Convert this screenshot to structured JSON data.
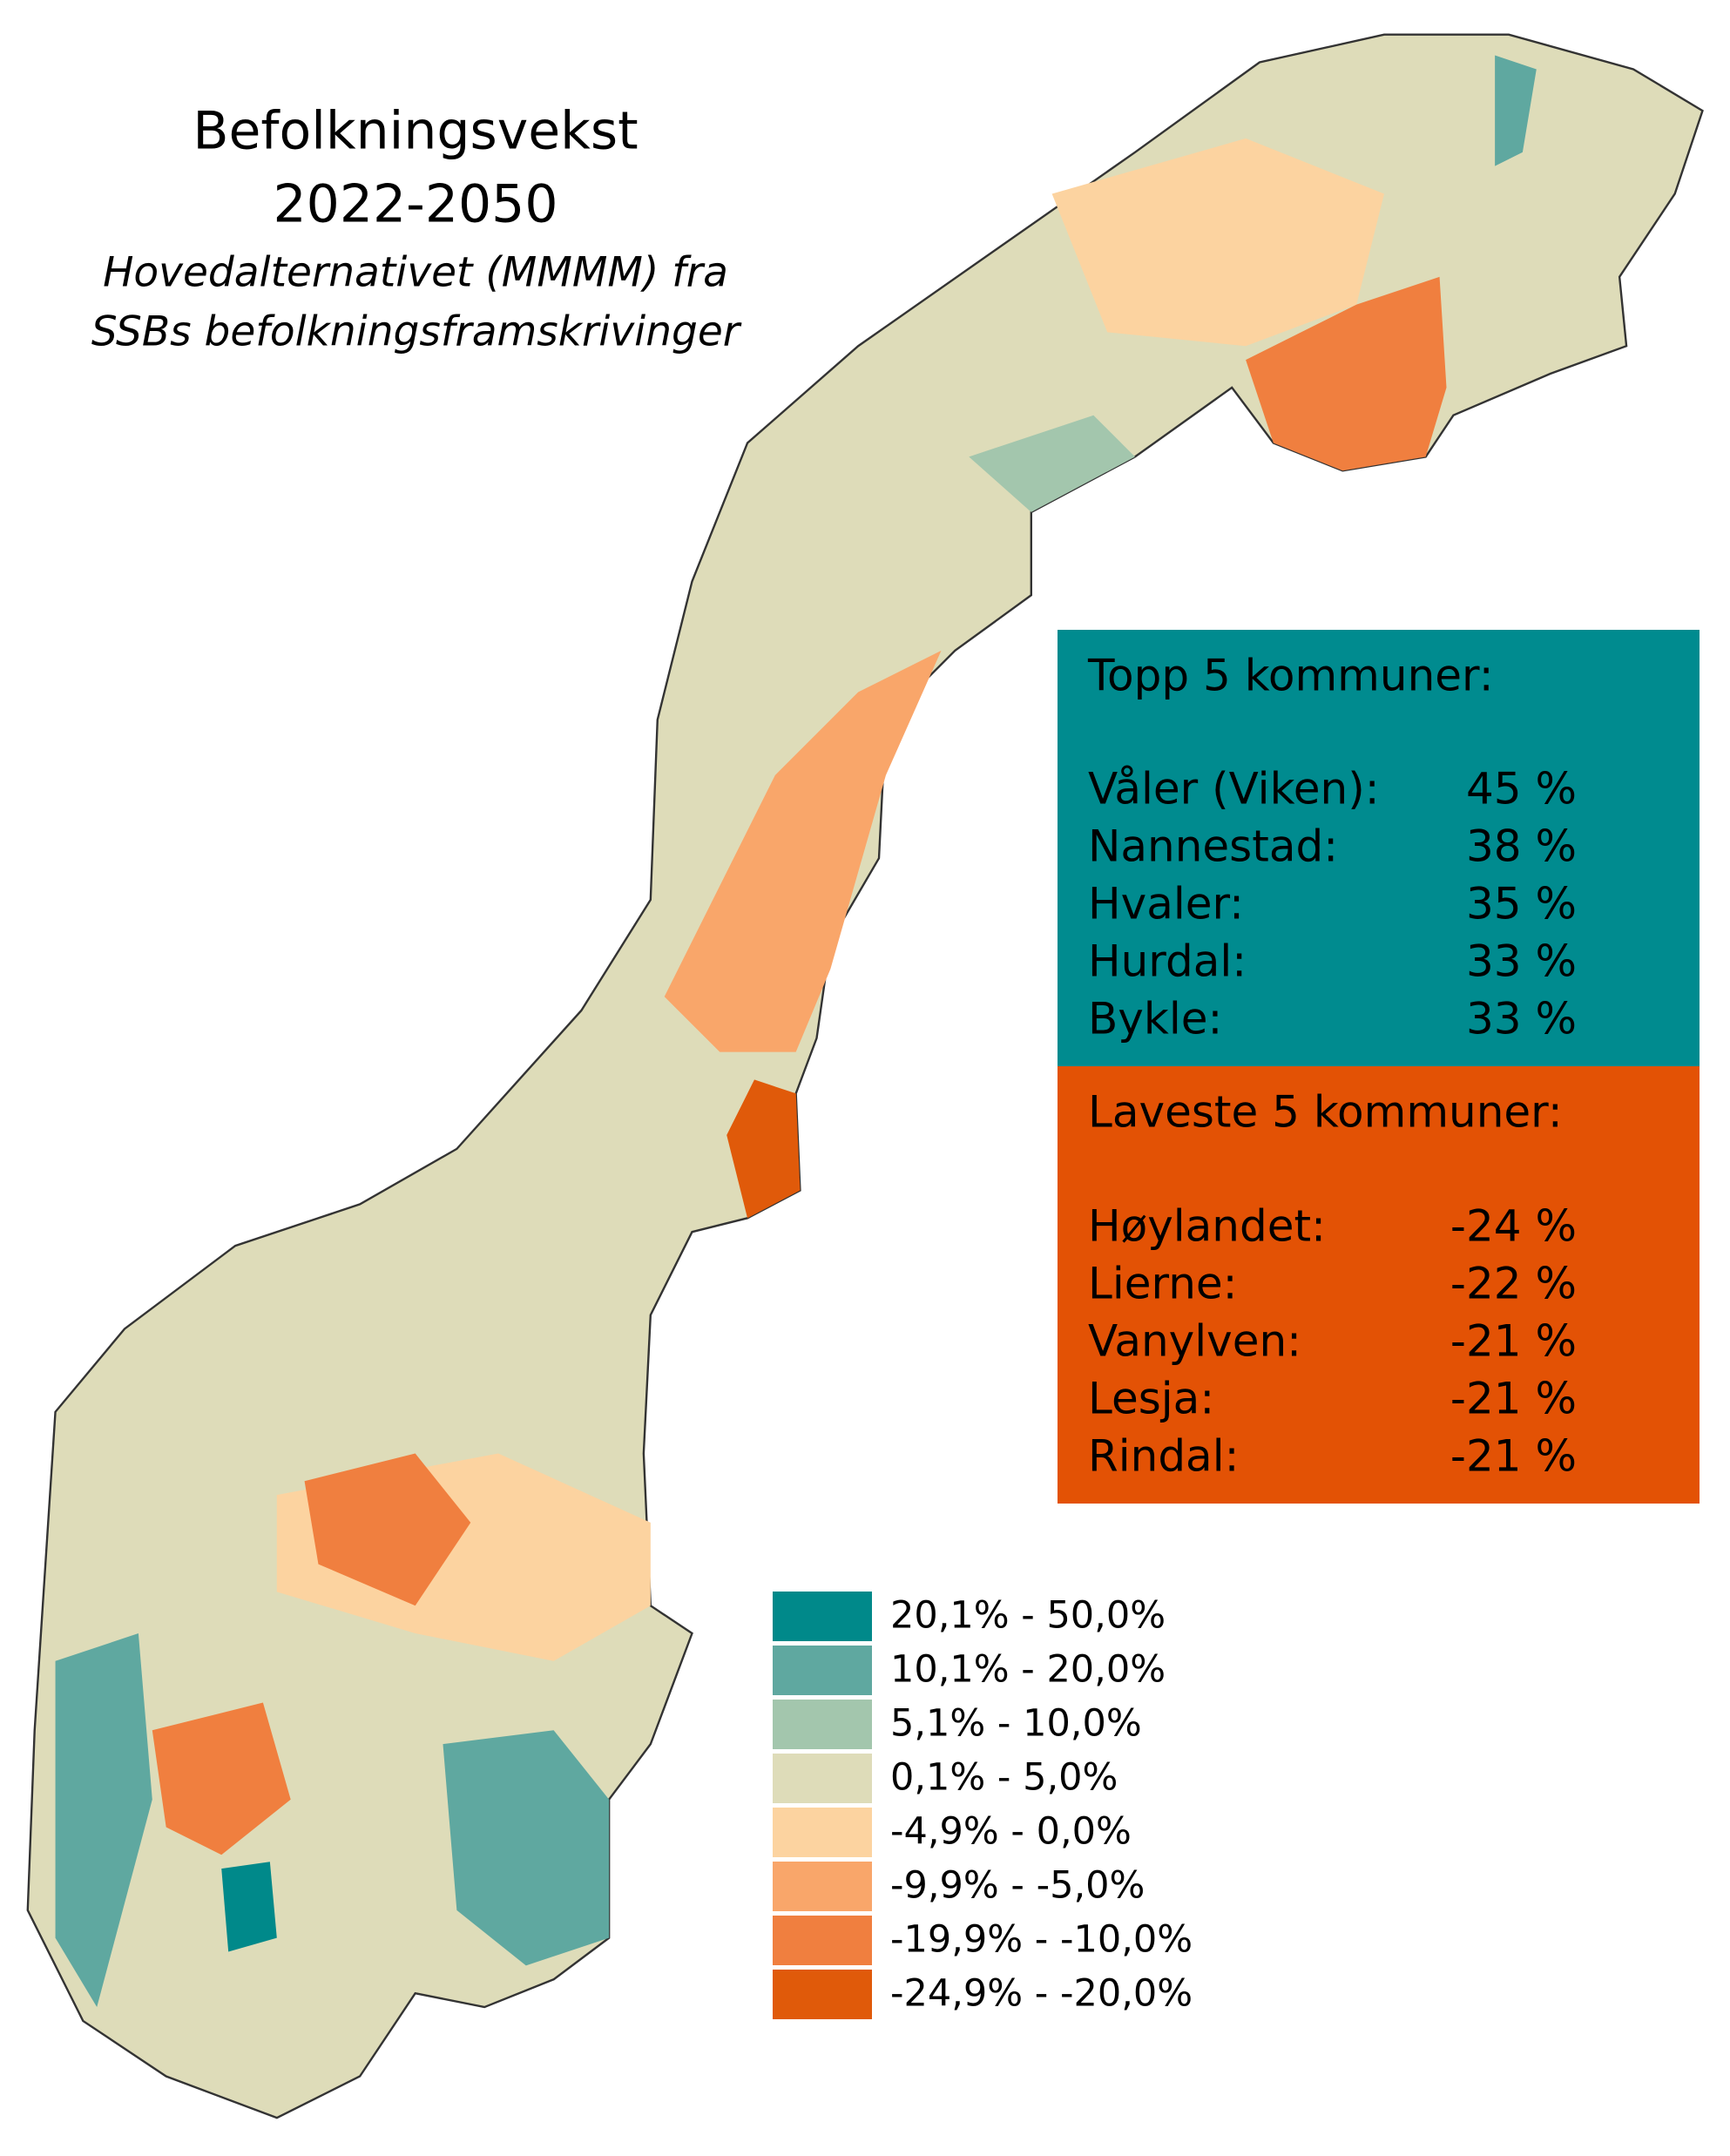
{
  "title": "Befolkningsvekst",
  "period": "2022-2050",
  "subtitle": [
    "Hovedalternativet (MMMM) fra",
    "SSBs befolkningsframskrivinger"
  ],
  "top": {
    "color": "#008b8f",
    "heading": "Topp 5 kommuner:",
    "rows": [
      {
        "name": "Våler (Viken):",
        "value": "45 %"
      },
      {
        "name": "Nannestad:",
        "value": "38 %"
      },
      {
        "name": "Hvaler:",
        "value": "35 %"
      },
      {
        "name": "Hurdal:",
        "value": "33 %"
      },
      {
        "name": "Bykle:",
        "value": "33 %"
      }
    ]
  },
  "bottom": {
    "color": "#e35205",
    "heading": "Laveste 5 kommuner:",
    "rows": [
      {
        "name": "Høylandet:",
        "value": "-24 %"
      },
      {
        "name": "Lierne:",
        "value": "-22 %"
      },
      {
        "name": "Vanylven:",
        "value": "-21 %"
      },
      {
        "name": "Lesja:",
        "value": "-21 %"
      },
      {
        "name": "Rindal:",
        "value": "-21 %"
      }
    ]
  },
  "legend": [
    {
      "label": "20,1% - 50,0%",
      "color": "#00898a"
    },
    {
      "label": "10,1% - 20,0%",
      "color": "#5fa8a0"
    },
    {
      "label": "5,1% - 10,0%",
      "color": "#a3c6ad"
    },
    {
      "label": "0,1% - 5,0%",
      "color": "#dedcb9"
    },
    {
      "label": "-4,9% - 0,0%",
      "color": "#fcd3a0"
    },
    {
      "label": "-9,9% - -5,0%",
      "color": "#f9a66a"
    },
    {
      "label": "-19,9% - -10,0%",
      "color": "#f07f3f"
    },
    {
      "label": "-24,9% - -20,0%",
      "color": "#e05a0a"
    }
  ]
}
